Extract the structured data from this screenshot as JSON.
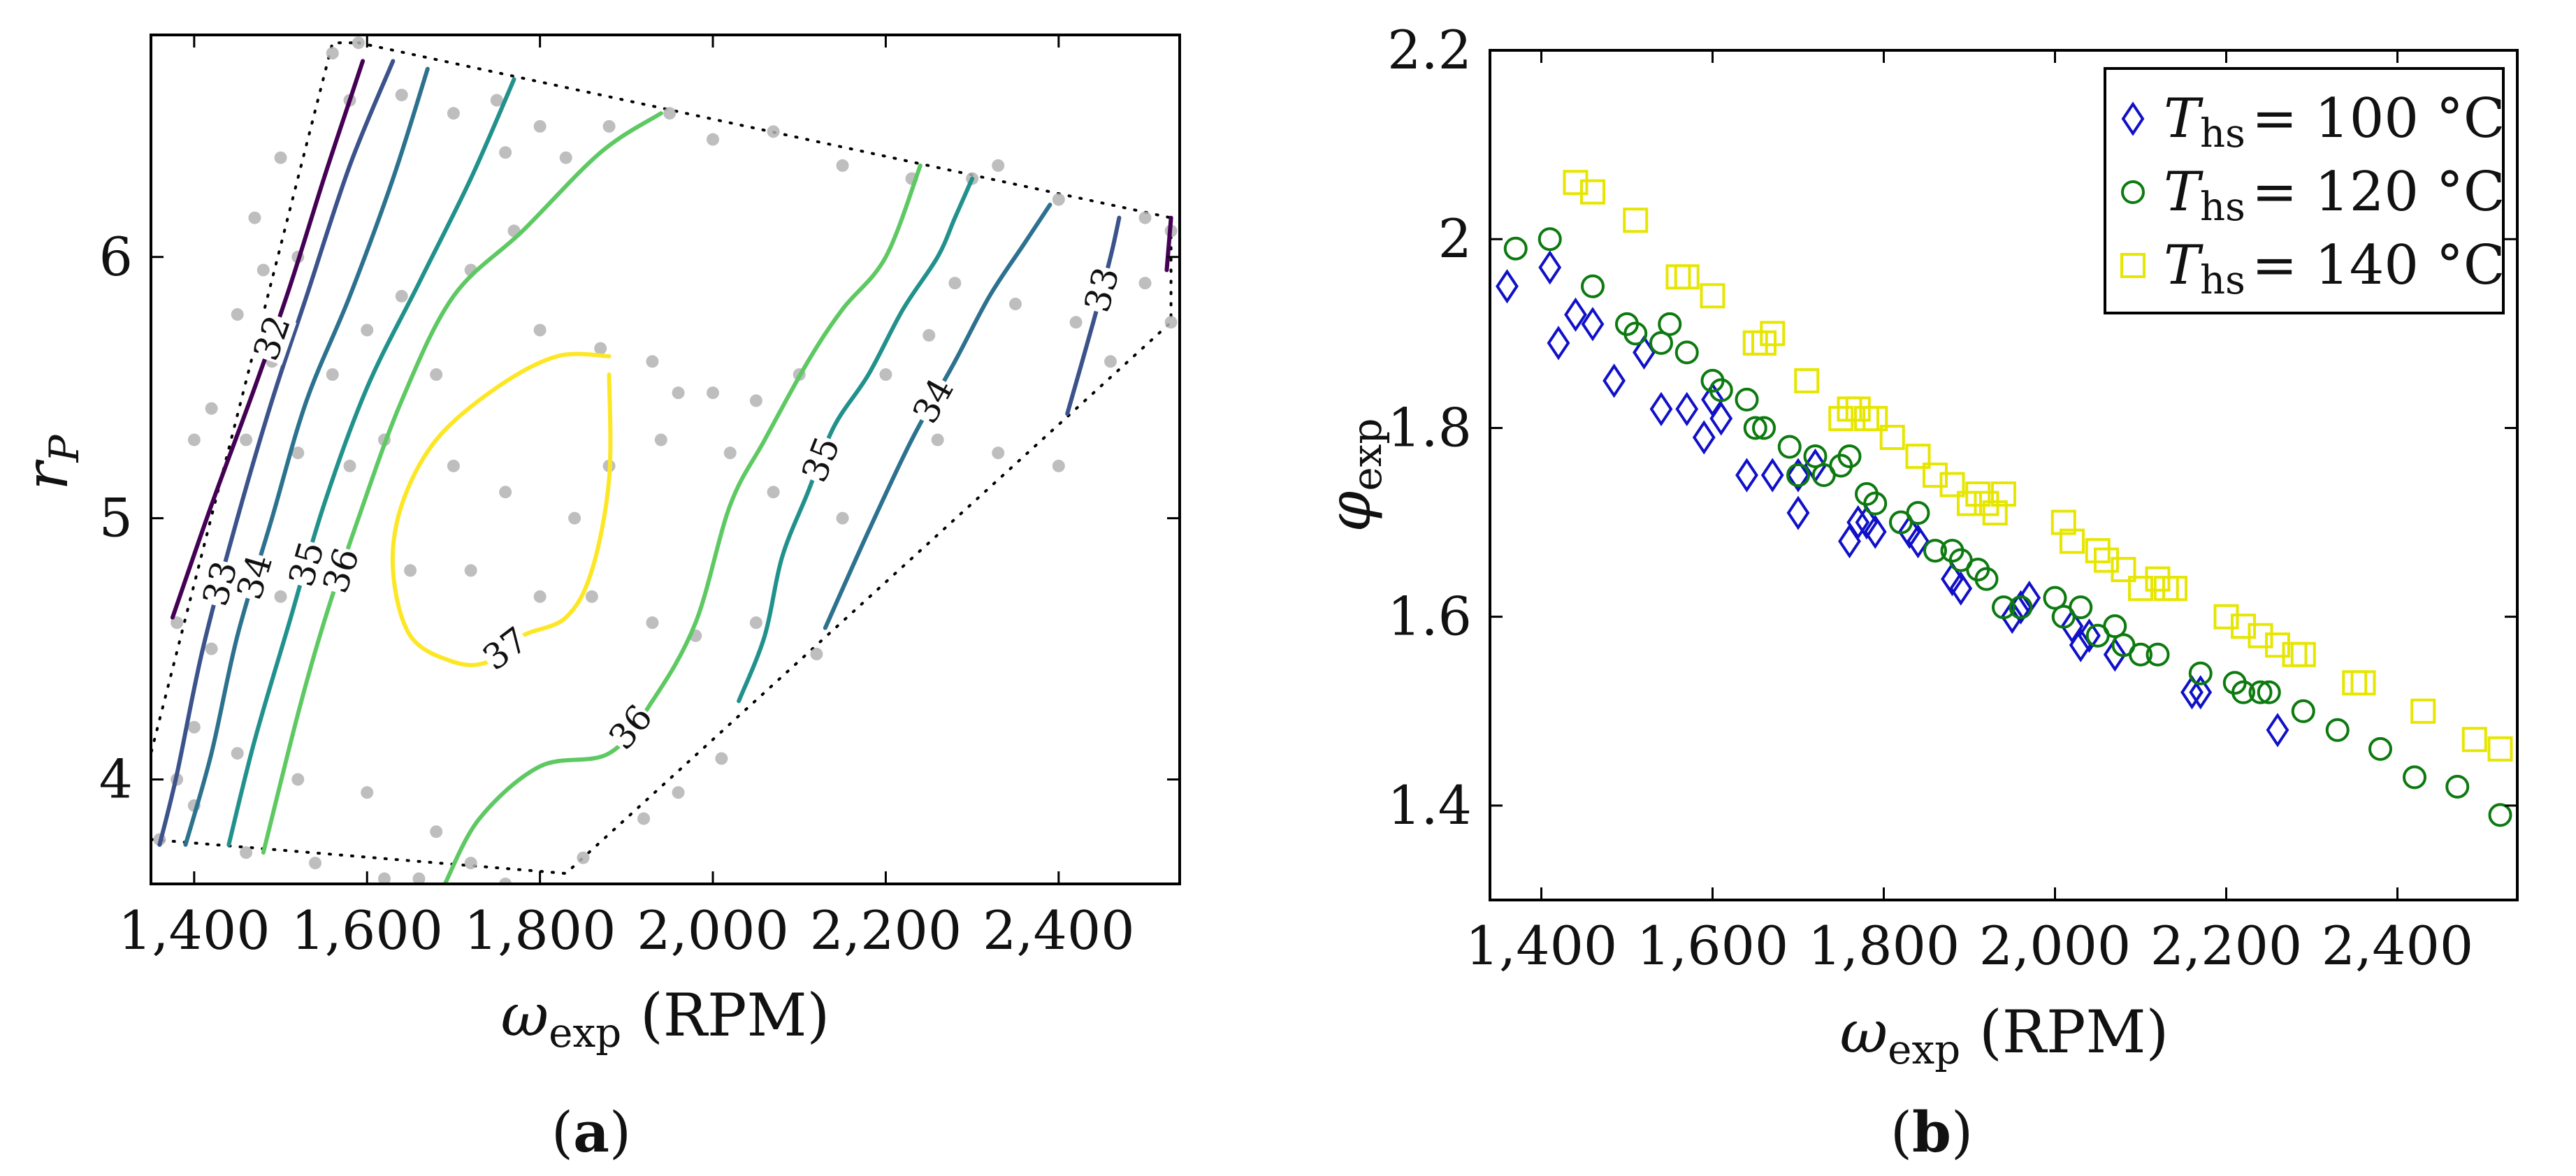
{
  "chart_data": [
    {
      "panel": "(a)",
      "type": "contour",
      "caption_open": "(",
      "caption_letter": "a",
      "caption_close": ")",
      "xlabel": "ω",
      "xlabel_sub": "exp",
      "xlabel_unit": " (RPM)",
      "ylabel": "r",
      "ylabel_sub": "P",
      "xlim": [
        1350,
        2540
      ],
      "ylim": [
        3.6,
        6.85
      ],
      "xticks": [
        1400,
        1600,
        1800,
        2000,
        2200,
        2400
      ],
      "xtick_labels": [
        "1,400",
        "1,600",
        "1,800",
        "2,000",
        "2,200",
        "2,400"
      ],
      "yticks": [
        4,
        5,
        6
      ],
      "ytick_labels": [
        "4",
        "5",
        "6"
      ],
      "hull": [
        [
          1590,
          6.82
        ],
        [
          2530,
          6.15
        ],
        [
          2530,
          5.75
        ],
        [
          1830,
          3.64
        ],
        [
          1350,
          3.77
        ],
        [
          1350,
          4.1
        ],
        [
          1560,
          6.82
        ]
      ],
      "samples": [
        [
          1590,
          6.82
        ],
        [
          1560,
          6.78
        ],
        [
          1580,
          6.6
        ],
        [
          1640,
          6.62
        ],
        [
          1700,
          6.55
        ],
        [
          1750,
          6.6
        ],
        [
          1800,
          6.5
        ],
        [
          1760,
          6.4
        ],
        [
          1830,
          6.38
        ],
        [
          1880,
          6.5
        ],
        [
          1950,
          6.55
        ],
        [
          2000,
          6.45
        ],
        [
          2070,
          6.48
        ],
        [
          2150,
          6.35
        ],
        [
          2230,
          6.3
        ],
        [
          2300,
          6.3
        ],
        [
          2330,
          6.35
        ],
        [
          2400,
          6.22
        ],
        [
          2500,
          6.15
        ],
        [
          2530,
          6.1
        ],
        [
          1500,
          6.38
        ],
        [
          1470,
          6.15
        ],
        [
          1520,
          6.0
        ],
        [
          1480,
          5.95
        ],
        [
          1450,
          5.78
        ],
        [
          1490,
          5.6
        ],
        [
          1560,
          5.55
        ],
        [
          1600,
          5.72
        ],
        [
          1640,
          5.85
        ],
        [
          1720,
          5.95
        ],
        [
          1770,
          6.1
        ],
        [
          1680,
          5.55
        ],
        [
          1800,
          5.72
        ],
        [
          1870,
          5.65
        ],
        [
          1930,
          5.6
        ],
        [
          1960,
          5.48
        ],
        [
          2000,
          5.48
        ],
        [
          2050,
          5.45
        ],
        [
          2100,
          5.55
        ],
        [
          2200,
          5.55
        ],
        [
          2250,
          5.7
        ],
        [
          2280,
          5.9
        ],
        [
          2350,
          5.82
        ],
        [
          2420,
          5.75
        ],
        [
          2460,
          5.6
        ],
        [
          2500,
          5.9
        ],
        [
          2530,
          5.75
        ],
        [
          1420,
          5.42
        ],
        [
          1460,
          5.3
        ],
        [
          1520,
          5.25
        ],
        [
          1580,
          5.2
        ],
        [
          1620,
          5.3
        ],
        [
          1700,
          5.2
        ],
        [
          1760,
          5.1
        ],
        [
          1840,
          5.0
        ],
        [
          1880,
          5.2
        ],
        [
          1940,
          5.3
        ],
        [
          2020,
          5.25
        ],
        [
          2070,
          5.1
        ],
        [
          2150,
          5.0
        ],
        [
          2260,
          5.3
        ],
        [
          2330,
          5.25
        ],
        [
          2400,
          5.2
        ],
        [
          1400,
          5.3
        ],
        [
          1380,
          4.6
        ],
        [
          1420,
          4.5
        ],
        [
          1500,
          4.7
        ],
        [
          1560,
          4.75
        ],
        [
          1650,
          4.8
        ],
        [
          1720,
          4.8
        ],
        [
          1800,
          4.7
        ],
        [
          1860,
          4.7
        ],
        [
          1930,
          4.6
        ],
        [
          1980,
          4.55
        ],
        [
          2050,
          4.6
        ],
        [
          2120,
          4.48
        ],
        [
          1400,
          4.2
        ],
        [
          1450,
          4.1
        ],
        [
          1520,
          4.0
        ],
        [
          1600,
          3.95
        ],
        [
          1680,
          3.8
        ],
        [
          1720,
          3.68
        ],
        [
          1760,
          3.6
        ],
        [
          1810,
          3.58
        ],
        [
          1850,
          3.7
        ],
        [
          1920,
          3.85
        ],
        [
          1960,
          3.95
        ],
        [
          2010,
          4.08
        ],
        [
          1400,
          3.9
        ],
        [
          1460,
          3.72
        ],
        [
          1540,
          3.68
        ],
        [
          1620,
          3.62
        ],
        [
          1660,
          3.62
        ],
        [
          1380,
          4.0
        ],
        [
          1360,
          3.77
        ]
      ],
      "contours": [
        {
          "level": 32,
          "color": "#440154",
          "label": "32",
          "points": [
            [
              1375,
              4.62
            ],
            [
              1420,
              5.05
            ],
            [
              1470,
              5.5
            ],
            [
              1510,
              5.88
            ],
            [
              1550,
              6.3
            ],
            [
              1580,
              6.6
            ],
            [
              1595,
              6.75
            ]
          ]
        },
        {
          "level": 33,
          "color": "#3b528b",
          "label": "33",
          "points": [
            [
              1360,
              3.75
            ],
            [
              1380,
              4.02
            ],
            [
              1410,
              4.5
            ],
            [
              1450,
              5.0
            ],
            [
              1490,
              5.45
            ],
            [
              1530,
              5.85
            ],
            [
              1580,
              6.35
            ],
            [
              1630,
              6.75
            ]
          ]
        },
        {
          "level": 34,
          "color": "#2c728e",
          "label": "34",
          "points": [
            [
              1390,
              3.75
            ],
            [
              1420,
              4.1
            ],
            [
              1450,
              4.55
            ],
            [
              1490,
              5.0
            ],
            [
              1530,
              5.45
            ],
            [
              1580,
              5.85
            ],
            [
              1630,
              6.3
            ],
            [
              1670,
              6.72
            ]
          ]
        },
        {
          "level": 35,
          "color": "#21918c",
          "label": "35",
          "points": [
            [
              1440,
              3.75
            ],
            [
              1470,
              4.15
            ],
            [
              1510,
              4.6
            ],
            [
              1550,
              5.05
            ],
            [
              1600,
              5.5
            ],
            [
              1660,
              5.9
            ],
            [
              1720,
              6.3
            ],
            [
              1770,
              6.68
            ]
          ]
        },
        {
          "level": 36,
          "color": "#5ec962",
          "label": "36",
          "points": [
            [
              1480,
              3.72
            ],
            [
              1520,
              4.25
            ],
            [
              1550,
              4.6
            ],
            [
              1590,
              5.0
            ],
            [
              1640,
              5.45
            ],
            [
              1700,
              5.85
            ],
            [
              1780,
              6.1
            ],
            [
              1870,
              6.4
            ],
            [
              1940,
              6.55
            ]
          ]
        },
        {
          "level": 37,
          "color": "#fde725",
          "label": "37",
          "points": [
            [
              1880,
              5.55
            ],
            [
              1880,
              5.15
            ],
            [
              1860,
              4.8
            ],
            [
              1830,
              4.62
            ],
            [
              1780,
              4.55
            ],
            [
              1740,
              4.45
            ],
            [
              1700,
              4.45
            ],
            [
              1650,
              4.55
            ],
            [
              1630,
              4.8
            ],
            [
              1640,
              5.05
            ],
            [
              1680,
              5.3
            ],
            [
              1750,
              5.5
            ],
            [
              1820,
              5.62
            ],
            [
              1880,
              5.62
            ]
          ]
        },
        {
          "level": 36,
          "color": "#5ec962",
          "label": "36",
          "points": [
            [
              1690,
              3.6
            ],
            [
              1730,
              3.85
            ],
            [
              1800,
              4.05
            ],
            [
              1880,
              4.1
            ],
            [
              1930,
              4.3
            ],
            [
              1980,
              4.6
            ],
            [
              2020,
              5.05
            ],
            [
              2060,
              5.3
            ],
            [
              2110,
              5.6
            ],
            [
              2150,
              5.8
            ],
            [
              2200,
              6.0
            ],
            [
              2240,
              6.35
            ]
          ]
        },
        {
          "level": 35,
          "color": "#21918c",
          "label": "35",
          "points": [
            [
              2030,
              4.3
            ],
            [
              2060,
              4.55
            ],
            [
              2080,
              4.85
            ],
            [
              2110,
              5.1
            ],
            [
              2140,
              5.35
            ],
            [
              2180,
              5.55
            ],
            [
              2220,
              5.8
            ],
            [
              2260,
              6.0
            ],
            [
              2280,
              6.15
            ],
            [
              2300,
              6.3
            ]
          ]
        },
        {
          "level": 34,
          "color": "#2c728e",
          "label": "34",
          "points": [
            [
              2130,
              4.58
            ],
            [
              2180,
              4.95
            ],
            [
              2230,
              5.3
            ],
            [
              2280,
              5.6
            ],
            [
              2320,
              5.85
            ],
            [
              2360,
              6.05
            ],
            [
              2390,
              6.2
            ]
          ]
        },
        {
          "level": 33,
          "color": "#3b528b",
          "label": "33",
          "points": [
            [
              2410,
              5.4
            ],
            [
              2440,
              5.75
            ],
            [
              2460,
              6.0
            ],
            [
              2470,
              6.15
            ]
          ]
        },
        {
          "level": 32,
          "color": "#440154",
          "label": "",
          "points": [
            [
              2525,
              5.95
            ],
            [
              2530,
              6.15
            ]
          ]
        }
      ]
    },
    {
      "panel": "(b)",
      "type": "scatter",
      "caption_open": "(",
      "caption_letter": "b",
      "caption_close": ")",
      "xlabel": "ω",
      "xlabel_sub": "exp",
      "xlabel_unit": " (RPM)",
      "ylabel": "φ",
      "ylabel_sub": "exp",
      "xlim": [
        1340,
        2540
      ],
      "ylim": [
        1.3,
        2.2
      ],
      "xticks": [
        1400,
        1600,
        1800,
        2000,
        2200,
        2400
      ],
      "xtick_labels": [
        "1,400",
        "1,600",
        "1,800",
        "2,000",
        "2,200",
        "2,400"
      ],
      "yticks": [
        1.4,
        1.6,
        1.8,
        2.0,
        2.2
      ],
      "ytick_labels": [
        "1.4",
        "1.6",
        "1.8",
        "2",
        "2.2"
      ],
      "legend_position": "top-right",
      "series": [
        {
          "name": "T_hs = 100 °C",
          "legend_sym": "T",
          "legend_sub": "hs",
          "legend_value": "= 100 °C",
          "marker": "diamond",
          "color": "#1010c8",
          "x": [
            1360,
            1410,
            1420,
            1440,
            1460,
            1485,
            1520,
            1540,
            1570,
            1590,
            1600,
            1610,
            1640,
            1670,
            1700,
            1700,
            1720,
            1760,
            1770,
            1780,
            1790,
            1830,
            1840,
            1880,
            1890,
            1950,
            1960,
            1970,
            2020,
            2030,
            2040,
            2070,
            2160,
            2170,
            2260
          ],
          "y": [
            1.95,
            1.97,
            1.89,
            1.92,
            1.91,
            1.85,
            1.88,
            1.82,
            1.82,
            1.79,
            1.83,
            1.81,
            1.75,
            1.75,
            1.75,
            1.71,
            1.76,
            1.68,
            1.7,
            1.7,
            1.69,
            1.69,
            1.68,
            1.64,
            1.63,
            1.6,
            1.61,
            1.62,
            1.59,
            1.57,
            1.58,
            1.56,
            1.52,
            1.52,
            1.48
          ]
        },
        {
          "name": "T_hs = 120 °C",
          "legend_sym": "T",
          "legend_sub": "hs",
          "legend_value": "= 120 °C",
          "marker": "circle",
          "color": "#0d7a10",
          "x": [
            1370,
            1410,
            1460,
            1500,
            1510,
            1540,
            1550,
            1570,
            1600,
            1610,
            1640,
            1650,
            1660,
            1690,
            1700,
            1720,
            1730,
            1750,
            1760,
            1780,
            1790,
            1820,
            1840,
            1860,
            1880,
            1890,
            1910,
            1920,
            1940,
            1960,
            2000,
            2010,
            2030,
            2050,
            2070,
            2080,
            2100,
            2120,
            2170,
            2210,
            2220,
            2240,
            2250,
            2290,
            2330,
            2380,
            2420,
            2470,
            2520
          ],
          "y": [
            1.99,
            2.0,
            1.95,
            1.91,
            1.9,
            1.89,
            1.91,
            1.88,
            1.85,
            1.84,
            1.83,
            1.8,
            1.8,
            1.78,
            1.75,
            1.77,
            1.75,
            1.76,
            1.77,
            1.73,
            1.72,
            1.7,
            1.71,
            1.67,
            1.67,
            1.66,
            1.65,
            1.64,
            1.61,
            1.61,
            1.62,
            1.6,
            1.61,
            1.58,
            1.59,
            1.57,
            1.56,
            1.56,
            1.54,
            1.53,
            1.52,
            1.52,
            1.52,
            1.5,
            1.48,
            1.46,
            1.43,
            1.42,
            1.39
          ]
        },
        {
          "name": "T_hs = 140 °C",
          "legend_sym": "T",
          "legend_sub": "hs",
          "legend_value": "= 140 °C",
          "marker": "square",
          "color": "#e6e600",
          "x": [
            1440,
            1460,
            1510,
            1560,
            1570,
            1600,
            1650,
            1660,
            1670,
            1710,
            1750,
            1760,
            1770,
            1780,
            1790,
            1810,
            1840,
            1860,
            1880,
            1900,
            1910,
            1920,
            1930,
            1940,
            2010,
            2020,
            2050,
            2060,
            2080,
            2100,
            2120,
            2130,
            2140,
            2200,
            2220,
            2240,
            2260,
            2280,
            2290,
            2350,
            2360,
            2430,
            2490,
            2520
          ],
          "y": [
            2.06,
            2.05,
            2.02,
            1.96,
            1.96,
            1.94,
            1.89,
            1.89,
            1.9,
            1.85,
            1.81,
            1.82,
            1.82,
            1.81,
            1.81,
            1.79,
            1.77,
            1.75,
            1.74,
            1.72,
            1.73,
            1.72,
            1.71,
            1.73,
            1.7,
            1.68,
            1.67,
            1.66,
            1.65,
            1.63,
            1.64,
            1.63,
            1.63,
            1.6,
            1.59,
            1.58,
            1.57,
            1.56,
            1.56,
            1.53,
            1.53,
            1.5,
            1.47,
            1.46
          ]
        }
      ]
    }
  ]
}
